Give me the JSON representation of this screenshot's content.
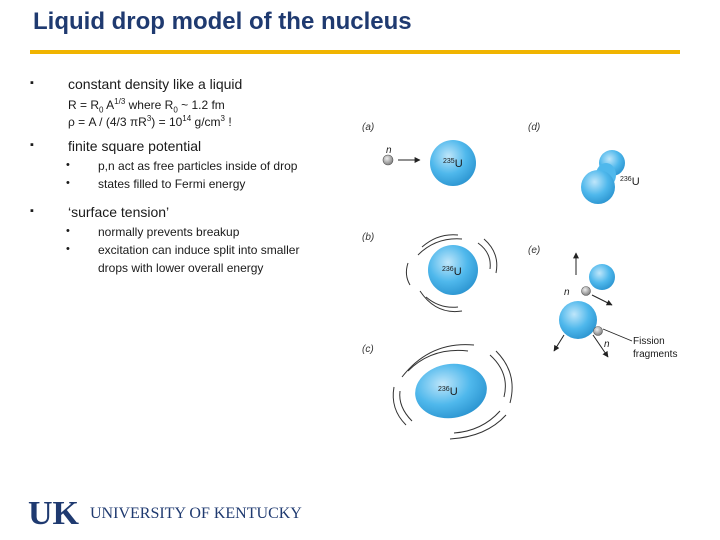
{
  "slide": {
    "title": "Liquid drop model of the nucleus",
    "bullets": [
      {
        "text": "constant density like a liquid"
      },
      {
        "text": "finite square potential"
      },
      {
        "text": "‘surface tension’"
      }
    ],
    "formula": {
      "line1_a": "R = R",
      "line1_sub": "0",
      "line1_b": " A",
      "line1_sup": "1/3",
      "line1_c": "  where R",
      "line1_sub2": "0",
      "line1_d": " ~ 1.2 fm",
      "line2_a": "ρ = A / (4/3 πR",
      "line2_sup": "3",
      "line2_b": ") = 10",
      "line2_sup2": "14",
      "line2_c": " g/cm",
      "line2_sup3": "3",
      "line2_d": " !"
    },
    "sub_bullets_2": [
      "p,n act as free particles inside of drop",
      "states filled to Fermi energy"
    ],
    "sub_bullets_3": [
      "normally prevents breakup",
      "excitation can induce split into smaller",
      "drops with lower overall energy"
    ]
  },
  "figure": {
    "panel_labels": [
      "(a)",
      "(b)",
      "(c)",
      "(d)",
      "(e)"
    ],
    "neutron_label": "n",
    "nucleus_a": "235U",
    "nucleus_b": "236U",
    "nucleus_c": "236U",
    "nucleus_d": "236U",
    "fission_label_1": "Fission",
    "fission_label_2": "fragments",
    "colors": {
      "drop": "#4fb8ec",
      "neutron": "#888888"
    }
  },
  "footer": {
    "logo_mark": "UK",
    "university": "UNIVERSITY OF KENTUCKY",
    "logo_color": "#1f3a70"
  }
}
